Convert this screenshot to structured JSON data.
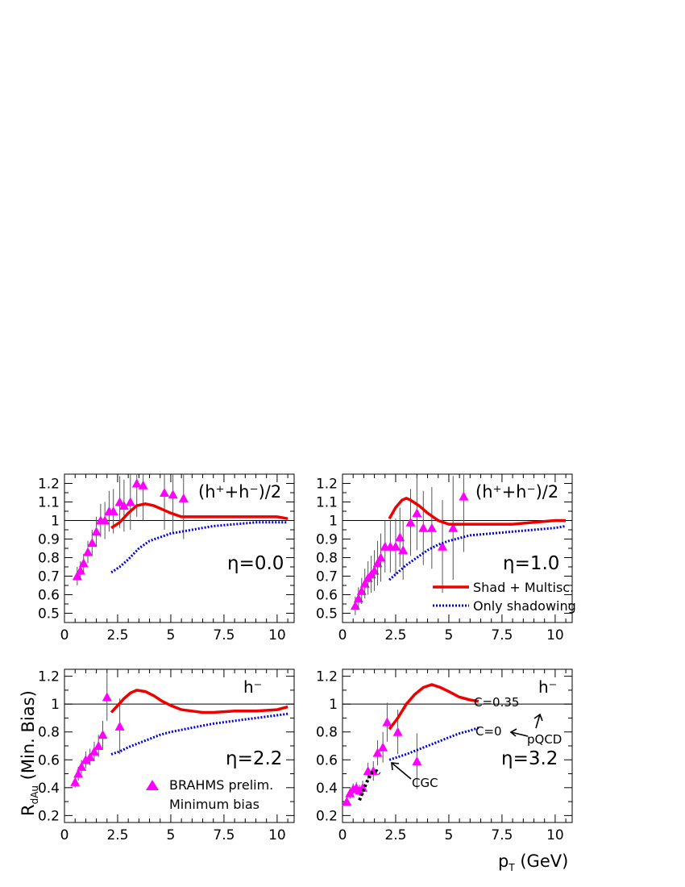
{
  "figure": {
    "y_axis_label": {
      "main": "R",
      "sub": "dAu",
      "tail": " (Min. Bias)"
    },
    "x_axis_label": {
      "main": "p",
      "sub": "T",
      "tail": " (GeV)"
    },
    "colors": {
      "data": "#ff00ff",
      "shad_multisc": "#ee0000",
      "only_shadowing": "#0000dd",
      "cgc": "#000000",
      "frame": "#000000"
    },
    "marker": "filled-triangle"
  },
  "chart_data": [
    {
      "type": "line",
      "panel": "top-left",
      "species": "(h⁺+h⁻)/2",
      "eta": "η=0.0",
      "xlim": [
        0,
        10.8
      ],
      "ylim": [
        0.45,
        1.25
      ],
      "xticks": [
        0,
        2.5,
        5,
        7.5,
        10
      ],
      "xtick_labels": [
        "0",
        "2.5",
        "5",
        "7.5",
        "10"
      ],
      "yticks": [
        0.5,
        0.6,
        0.7,
        0.8,
        0.9,
        1.0,
        1.1,
        1.2
      ],
      "ytick_labels": [
        "0.5",
        "0.6",
        "0.7",
        "0.8",
        "0.9",
        "1",
        "1.1",
        "1.2"
      ],
      "reference_line": 1.0,
      "series": [
        {
          "kind": "data",
          "points": [
            {
              "x": 0.6,
              "y": 0.7,
              "err": 0.05
            },
            {
              "x": 0.75,
              "y": 0.73,
              "err": 0.05
            },
            {
              "x": 0.9,
              "y": 0.77,
              "err": 0.05
            },
            {
              "x": 1.1,
              "y": 0.83,
              "err": 0.06
            },
            {
              "x": 1.3,
              "y": 0.88,
              "err": 0.07
            },
            {
              "x": 1.5,
              "y": 0.94,
              "err": 0.08
            },
            {
              "x": 1.7,
              "y": 1.0,
              "err": 0.09
            },
            {
              "x": 1.9,
              "y": 1.0,
              "err": 0.1
            },
            {
              "x": 2.1,
              "y": 1.05,
              "err": 0.11
            },
            {
              "x": 2.3,
              "y": 1.05,
              "err": 0.12
            },
            {
              "x": 2.6,
              "y": 1.1,
              "err": 0.14
            },
            {
              "x": 2.8,
              "y": 1.08,
              "err": 0.14
            },
            {
              "x": 3.1,
              "y": 1.1,
              "err": 0.15
            },
            {
              "x": 3.4,
              "y": 1.2,
              "err": 0.18
            },
            {
              "x": 3.7,
              "y": 1.19,
              "err": 0.19
            },
            {
              "x": 4.7,
              "y": 1.15,
              "err": 0.2
            },
            {
              "x": 5.1,
              "y": 1.14,
              "err": 0.21
            },
            {
              "x": 5.6,
              "y": 1.12,
              "err": 0.22
            }
          ]
        },
        {
          "kind": "shad_multisc",
          "x": [
            2.2,
            2.6,
            3.0,
            3.4,
            3.8,
            4.2,
            4.6,
            5.0,
            5.5,
            6.0,
            7.0,
            8.0,
            9.0,
            10.0,
            10.5
          ],
          "y": [
            0.96,
            0.99,
            1.04,
            1.08,
            1.09,
            1.08,
            1.06,
            1.04,
            1.02,
            1.02,
            1.02,
            1.02,
            1.02,
            1.02,
            1.01
          ]
        },
        {
          "kind": "only_shadowing",
          "x": [
            2.2,
            2.6,
            3.0,
            3.5,
            4.0,
            4.5,
            5.0,
            6.0,
            7.0,
            8.0,
            9.0,
            10.0,
            10.5
          ],
          "y": [
            0.72,
            0.75,
            0.79,
            0.85,
            0.89,
            0.91,
            0.93,
            0.95,
            0.97,
            0.98,
            0.99,
            0.99,
            0.99
          ]
        }
      ]
    },
    {
      "type": "line",
      "panel": "top-right",
      "species": "(h⁺+h⁻)/2",
      "eta": "η=1.0",
      "xlim": [
        0,
        10.8
      ],
      "ylim": [
        0.45,
        1.25
      ],
      "xticks": [
        0,
        2.5,
        5,
        7.5,
        10
      ],
      "xtick_labels": [
        "0",
        "2.5",
        "5",
        "7.5",
        "10"
      ],
      "yticks": [
        0.5,
        0.6,
        0.7,
        0.8,
        0.9,
        1.0,
        1.1,
        1.2
      ],
      "ytick_labels": [
        "0.5",
        "0.6",
        "0.7",
        "0.8",
        "0.9",
        "1",
        "1.1",
        "1.2"
      ],
      "reference_line": 1.0,
      "legend": {
        "placement": "lower-right",
        "entries": [
          {
            "kind": "shad_multisc",
            "label": "Shad + Multisc."
          },
          {
            "kind": "only_shadowing",
            "label": "Only shadowing"
          }
        ]
      },
      "series": [
        {
          "kind": "data",
          "points": [
            {
              "x": 0.6,
              "y": 0.54,
              "err": 0.05
            },
            {
              "x": 0.75,
              "y": 0.58,
              "err": 0.06
            },
            {
              "x": 0.9,
              "y": 0.62,
              "err": 0.07
            },
            {
              "x": 1.05,
              "y": 0.66,
              "err": 0.08
            },
            {
              "x": 1.2,
              "y": 0.69,
              "err": 0.09
            },
            {
              "x": 1.35,
              "y": 0.71,
              "err": 0.1
            },
            {
              "x": 1.5,
              "y": 0.73,
              "err": 0.11
            },
            {
              "x": 1.65,
              "y": 0.77,
              "err": 0.12
            },
            {
              "x": 1.8,
              "y": 0.8,
              "err": 0.13
            },
            {
              "x": 2.0,
              "y": 0.86,
              "err": 0.14
            },
            {
              "x": 2.25,
              "y": 0.86,
              "err": 0.14
            },
            {
              "x": 2.5,
              "y": 0.86,
              "err": 0.15
            },
            {
              "x": 2.7,
              "y": 0.91,
              "err": 0.16
            },
            {
              "x": 2.85,
              "y": 0.84,
              "err": 0.16
            },
            {
              "x": 3.2,
              "y": 0.99,
              "err": 0.18
            },
            {
              "x": 3.5,
              "y": 1.04,
              "err": 0.2
            },
            {
              "x": 3.8,
              "y": 0.96,
              "err": 0.2
            },
            {
              "x": 4.2,
              "y": 0.96,
              "err": 0.22
            },
            {
              "x": 4.7,
              "y": 0.86,
              "err": 0.25
            },
            {
              "x": 5.2,
              "y": 0.96,
              "err": 0.28
            },
            {
              "x": 5.7,
              "y": 1.13,
              "err": 0.3
            }
          ]
        },
        {
          "kind": "shad_multisc",
          "x": [
            2.2,
            2.5,
            2.8,
            3.0,
            3.2,
            3.6,
            4.0,
            4.5,
            5.0,
            6.0,
            7.0,
            8.0,
            9.0,
            10.0,
            10.5
          ],
          "y": [
            1.01,
            1.07,
            1.11,
            1.12,
            1.11,
            1.08,
            1.04,
            1.0,
            0.98,
            0.98,
            0.98,
            0.98,
            0.99,
            1.0,
            1.0
          ]
        },
        {
          "kind": "only_shadowing",
          "x": [
            2.2,
            2.6,
            3.0,
            3.5,
            4.0,
            4.5,
            5.0,
            6.0,
            7.0,
            8.0,
            9.0,
            10.0,
            10.5
          ],
          "y": [
            0.68,
            0.72,
            0.76,
            0.8,
            0.84,
            0.87,
            0.89,
            0.92,
            0.93,
            0.94,
            0.95,
            0.96,
            0.97
          ]
        }
      ]
    },
    {
      "type": "line",
      "panel": "bottom-left",
      "species": "h⁻",
      "eta": "η=2.2",
      "xlim": [
        0,
        10.8
      ],
      "ylim": [
        0.15,
        1.25
      ],
      "xticks": [
        0,
        2.5,
        5,
        7.5,
        10
      ],
      "xtick_labels": [
        "0",
        "2.5",
        "5",
        "7.5",
        "10"
      ],
      "yticks": [
        0.2,
        0.4,
        0.6,
        0.8,
        1.0,
        1.2
      ],
      "ytick_labels": [
        "0.2",
        "0.4",
        "0.6",
        "0.8",
        "1",
        "1.2"
      ],
      "reference_line": 1.0,
      "legend": {
        "placement": "lower-right",
        "entries": [
          {
            "kind": "data",
            "label": "BRAHMS prelim."
          },
          {
            "kind": "note",
            "label": "Minimum bias"
          }
        ]
      },
      "series": [
        {
          "kind": "data",
          "points": [
            {
              "x": 0.5,
              "y": 0.44,
              "err": 0.04
            },
            {
              "x": 0.65,
              "y": 0.5,
              "err": 0.05
            },
            {
              "x": 0.8,
              "y": 0.55,
              "err": 0.05
            },
            {
              "x": 1.0,
              "y": 0.6,
              "err": 0.06
            },
            {
              "x": 1.2,
              "y": 0.62,
              "err": 0.06
            },
            {
              "x": 1.4,
              "y": 0.66,
              "err": 0.07
            },
            {
              "x": 1.6,
              "y": 0.7,
              "err": 0.08
            },
            {
              "x": 1.8,
              "y": 0.78,
              "err": 0.1
            },
            {
              "x": 2.0,
              "y": 1.05,
              "err": 0.17
            },
            {
              "x": 2.6,
              "y": 0.84,
              "err": 0.2
            }
          ]
        },
        {
          "kind": "shad_multisc",
          "x": [
            2.2,
            2.5,
            2.8,
            3.1,
            3.4,
            3.8,
            4.2,
            4.6,
            5.0,
            5.5,
            6.0,
            6.5,
            7.0,
            8.0,
            9.0,
            10.0,
            10.5
          ],
          "y": [
            0.94,
            0.99,
            1.04,
            1.08,
            1.1,
            1.09,
            1.06,
            1.02,
            0.99,
            0.96,
            0.95,
            0.94,
            0.94,
            0.95,
            0.95,
            0.96,
            0.98
          ]
        },
        {
          "kind": "only_shadowing",
          "x": [
            2.2,
            2.6,
            3.0,
            3.5,
            4.0,
            4.5,
            5.0,
            6.0,
            7.0,
            8.0,
            9.0,
            10.0,
            10.5
          ],
          "y": [
            0.64,
            0.66,
            0.69,
            0.72,
            0.75,
            0.78,
            0.8,
            0.83,
            0.86,
            0.88,
            0.9,
            0.92,
            0.93
          ]
        }
      ]
    },
    {
      "type": "line",
      "panel": "bottom-right",
      "species": "h⁻",
      "eta": "η=3.2",
      "xlim": [
        0,
        10.8
      ],
      "ylim": [
        0.15,
        1.25
      ],
      "xticks": [
        0,
        2.5,
        5,
        7.5,
        10
      ],
      "xtick_labels": [
        "0",
        "2.5",
        "5",
        "7.5",
        "10"
      ],
      "yticks": [
        0.2,
        0.4,
        0.6,
        0.8,
        1.0,
        1.2
      ],
      "ytick_labels": [
        "0.2",
        "0.4",
        "0.6",
        "0.8",
        "1",
        "1.2"
      ],
      "reference_line": 1.0,
      "annotations": {
        "c035": "C=0.35",
        "c0": "C=0",
        "pqcd": "pQCD",
        "cgc": "CGC"
      },
      "series": [
        {
          "kind": "data",
          "points": [
            {
              "x": 0.2,
              "y": 0.3,
              "err": 0.03
            },
            {
              "x": 0.35,
              "y": 0.36,
              "err": 0.04
            },
            {
              "x": 0.5,
              "y": 0.39,
              "err": 0.04
            },
            {
              "x": 0.65,
              "y": 0.4,
              "err": 0.04
            },
            {
              "x": 0.8,
              "y": 0.38,
              "err": 0.04
            },
            {
              "x": 0.95,
              "y": 0.4,
              "err": 0.05
            },
            {
              "x": 1.2,
              "y": 0.52,
              "err": 0.06
            },
            {
              "x": 1.45,
              "y": 0.52,
              "err": 0.07
            },
            {
              "x": 1.65,
              "y": 0.65,
              "err": 0.09
            },
            {
              "x": 1.9,
              "y": 0.69,
              "err": 0.11
            },
            {
              "x": 2.1,
              "y": 0.87,
              "err": 0.14
            },
            {
              "x": 2.6,
              "y": 0.8,
              "err": 0.16
            },
            {
              "x": 3.5,
              "y": 0.59,
              "err": 0.2
            }
          ]
        },
        {
          "kind": "shad_multisc",
          "x": [
            2.2,
            2.6,
            3.0,
            3.4,
            3.8,
            4.2,
            4.6,
            5.0,
            5.5,
            6.0,
            6.4
          ],
          "y": [
            0.82,
            0.9,
            1.0,
            1.07,
            1.12,
            1.14,
            1.12,
            1.09,
            1.05,
            1.03,
            1.02
          ]
        },
        {
          "kind": "only_shadowing",
          "x": [
            2.2,
            2.6,
            3.0,
            3.5,
            4.0,
            4.5,
            5.0,
            5.5,
            6.0,
            6.4
          ],
          "y": [
            0.6,
            0.62,
            0.64,
            0.67,
            0.7,
            0.73,
            0.76,
            0.79,
            0.81,
            0.83
          ]
        },
        {
          "kind": "cgc",
          "x": [
            0.8,
            1.0,
            1.2,
            1.4,
            1.6,
            1.75
          ],
          "y": [
            0.31,
            0.39,
            0.46,
            0.51,
            0.52,
            0.5
          ]
        }
      ]
    }
  ]
}
